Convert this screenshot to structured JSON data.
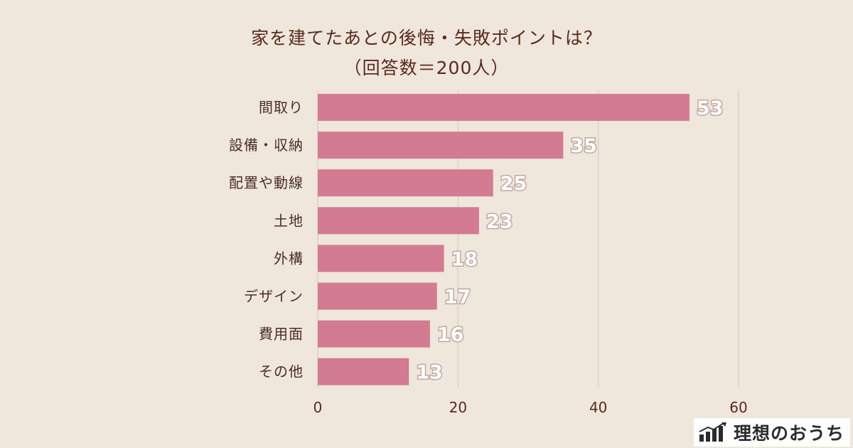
{
  "chart_data": {
    "type": "bar",
    "orientation": "horizontal",
    "title_lines": [
      "家を建てたあとの後悔・失敗ポイントは？",
      "（回答数＝200人）"
    ],
    "categories": [
      "間取り",
      "設備・収納",
      "配置や動線",
      "土地",
      "外構",
      "デザイン",
      "費用面",
      "その他"
    ],
    "values": [
      53,
      35,
      25,
      23,
      18,
      17,
      16,
      13
    ],
    "x_ticks": [
      0,
      20,
      40,
      60
    ],
    "xlim": [
      0,
      60
    ],
    "grid": true,
    "bar_color": "#d37b92"
  },
  "brand": {
    "name": "理想のおうち"
  }
}
